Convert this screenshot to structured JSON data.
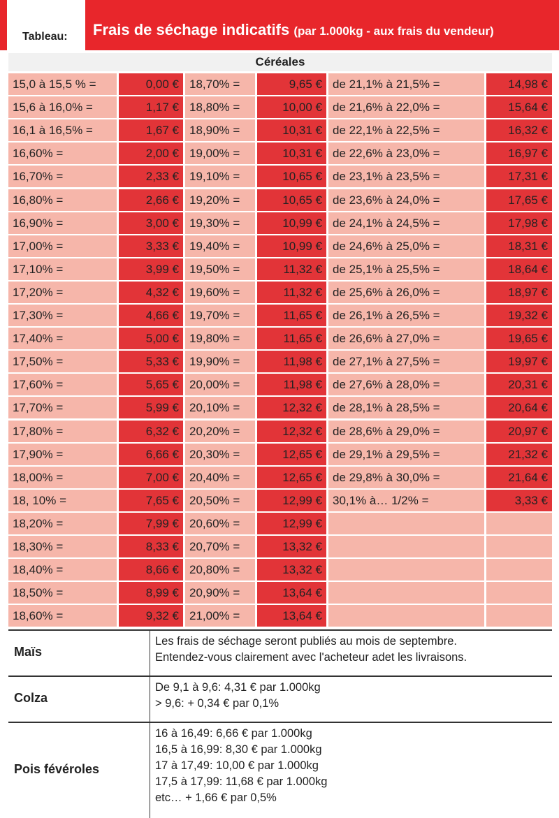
{
  "header": {
    "tab": "Tableau:",
    "title": "Frais de séchage indicatifs",
    "title_note": "(par 1.000kg - aux frais du vendeur)"
  },
  "table": {
    "caption": "Céréales",
    "rows": [
      [
        "15,0 à 15,5 % =",
        "0,00 €",
        "18,70% =",
        "9,65 €",
        "de 21,1% à 21,5% =",
        "14,98 €"
      ],
      [
        "15,6 à 16,0% =",
        "1,17 €",
        "18,80% =",
        "10,00 €",
        "de 21,6% à 22,0% =",
        "15,64 €"
      ],
      [
        "16,1 à 16,5% =",
        "1,67 €",
        "18,90% =",
        "10,31 €",
        "de 22,1% à 22,5% =",
        "16,32 €"
      ],
      [
        "16,60% =",
        "2,00 €",
        "19,00% =",
        "10,31 €",
        "de 22,6% à 23,0% =",
        "16,97 €"
      ],
      [
        "16,70% =",
        "2,33 €",
        "19,10% =",
        "10,65 €",
        "de 23,1% à 23,5% =",
        "17,31 €"
      ],
      [
        "16,80% =",
        "2,66 €",
        "19,20% =",
        "10,65 €",
        "de 23,6% à 24,0% =",
        "17,65 €"
      ],
      [
        "16,90% =",
        "3,00 €",
        "19,30% =",
        "10,99 €",
        "de 24,1% à 24,5% =",
        "17,98 €"
      ],
      [
        "17,00% =",
        "3,33 €",
        "19,40% =",
        "10,99 €",
        "de 24,6% à 25,0% =",
        "18,31 €"
      ],
      [
        "17,10% =",
        "3,99 €",
        "19,50% =",
        "11,32 €",
        "de 25,1% à 25,5% =",
        "18,64 €"
      ],
      [
        "17,20% =",
        "4,32 €",
        "19,60% =",
        "11,32 €",
        "de 25,6% à 26,0% =",
        "18,97 €"
      ],
      [
        "17,30% =",
        "4,66 €",
        "19,70% =",
        "11,65 €",
        "de 26,1% à 26,5% =",
        "19,32 €"
      ],
      [
        "17,40% =",
        "5,00 €",
        "19,80% =",
        "11,65 €",
        "de 26,6% à 27,0% =",
        "19,65 €"
      ],
      [
        "17,50% =",
        "5,33 €",
        "19,90% =",
        "11,98 €",
        "de 27,1% à 27,5% =",
        "19,97 €"
      ],
      [
        "17,60% =",
        "5,65 €",
        "20,00% =",
        "11,98 €",
        "de 27,6% à 28,0% =",
        "20,31 €"
      ],
      [
        "17,70% =",
        "5,99 €",
        "20,10% =",
        "12,32 €",
        "de 28,1% à 28,5% =",
        "20,64 €"
      ],
      [
        "17,80% =",
        "6,32 €",
        "20,20% =",
        "12,32 €",
        "de 28,6% à 29,0% =",
        "20,97 €"
      ],
      [
        "17,90% =",
        "6,66 €",
        "20,30% =",
        "12,65 €",
        "de 29,1% à 29,5% =",
        "21,32 €"
      ],
      [
        "18,00% =",
        "7,00 €",
        "20,40% =",
        "12,65 €",
        "de 29,8% à 30,0% =",
        "21,64 €"
      ],
      [
        "18, 10% =",
        "7,65 €",
        "20,50% =",
        "12,99 €",
        "30,1% à… 1/2% =",
        "3,33 €"
      ],
      [
        "18,20% =",
        "7,99 €",
        "20,60% =",
        "12,99 €"
      ],
      [
        "18,30% =",
        "8,33 €",
        "20,70% =",
        "13,32 €"
      ],
      [
        "18,40% =",
        "8,66 €",
        "20,80% =",
        "13,32 €"
      ],
      [
        "18,50% =",
        "8,99 €",
        "20,90% =",
        "13,64 €"
      ],
      [
        "18,60% =",
        "9,32 €",
        "21,00% =",
        "13,64 €"
      ]
    ]
  },
  "others": [
    {
      "name": "Maïs",
      "lines": [
        "Les frais de séchage seront publiés au mois de septembre.",
        "Entendez-vous clairement avec l'acheteur adet les livraisons."
      ]
    },
    {
      "name": "Colza",
      "lines": [
        "De 9,1 à 9,6: 4,31 € par 1.000kg",
        "> 9,6: + 0,34 € par 0,1%"
      ]
    },
    {
      "name": "Pois févéroles",
      "lines": [
        "16 à 16,49: 6,66 € par 1.000kg",
        "16,5 à 16,99: 8,30 € par 1.000kg",
        "17 à 17,49: 10,00 € par 1.000kg",
        "17,5 à 17,99: 11,68 € par 1.000kg",
        "etc… + 1,66 € par 0,5%"
      ]
    }
  ]
}
